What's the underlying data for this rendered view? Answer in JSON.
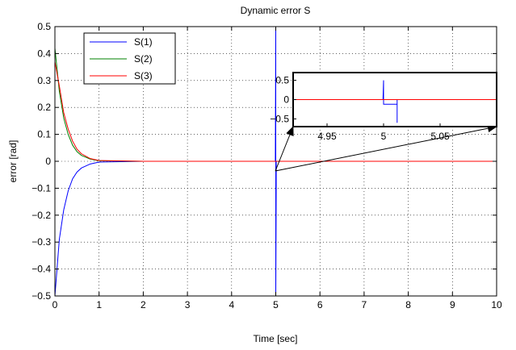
{
  "chart_data": {
    "type": "line",
    "title": "Dynamic error S",
    "xlabel": "Time [sec]",
    "ylabel": "error [rad]",
    "xlim": [
      0,
      10
    ],
    "ylim": [
      -0.5,
      0.5
    ],
    "xticks": [
      "0",
      "1",
      "2",
      "3",
      "4",
      "5",
      "6",
      "7",
      "8",
      "9",
      "10"
    ],
    "yticks": [
      "0.5",
      "0.4",
      "0.3",
      "0.2",
      "0.1",
      "0",
      "−0.1",
      "−0.2",
      "−0.3",
      "−0.4",
      "−0.5"
    ],
    "grid": true,
    "legend_position": "top-left",
    "series": [
      {
        "name": "S(1)",
        "color": "#0000ff",
        "x": [
          0,
          0.1,
          0.2,
          0.3,
          0.4,
          0.5,
          0.6,
          0.8,
          1.0,
          2,
          3,
          4,
          4.99,
          5.0,
          5.0,
          5.01,
          5.01,
          6,
          7,
          8,
          9,
          10
        ],
        "y": [
          -0.5,
          -0.29,
          -0.18,
          -0.11,
          -0.065,
          -0.04,
          -0.025,
          -0.01,
          -0.003,
          0.0,
          0.0,
          0.0,
          0.0,
          0.5,
          -0.5,
          -0.09,
          0.0,
          0.0,
          0.0,
          0.0,
          0.0,
          0.0
        ]
      },
      {
        "name": "S(2)",
        "color": "#008000",
        "x": [
          0,
          0.1,
          0.2,
          0.3,
          0.4,
          0.5,
          0.6,
          0.8,
          1.0,
          2,
          3,
          4,
          5,
          6,
          7,
          8,
          9,
          10
        ],
        "y": [
          0.42,
          0.26,
          0.16,
          0.1,
          0.06,
          0.036,
          0.022,
          0.008,
          0.002,
          0.0,
          0.0,
          0.0,
          0.0,
          0.0,
          0.0,
          0.0,
          0.0,
          0.0
        ]
      },
      {
        "name": "S(3)",
        "color": "#ff0000",
        "x": [
          0,
          0.1,
          0.2,
          0.3,
          0.4,
          0.5,
          0.6,
          0.8,
          1.0,
          2,
          3,
          4,
          5,
          6,
          7,
          8,
          9,
          10
        ],
        "y": [
          0.37,
          0.28,
          0.18,
          0.12,
          0.075,
          0.045,
          0.028,
          0.01,
          0.003,
          0.0,
          0.0,
          0.0,
          0.0,
          0.0,
          0.0,
          0.0,
          0.0,
          0.0
        ]
      }
    ],
    "inset": {
      "xlim": [
        4.92,
        5.1
      ],
      "ylim": [
        -0.7,
        0.7
      ],
      "xticks": [
        "4.95",
        "5",
        "5.05"
      ],
      "xtick_values": [
        4.95,
        5.0,
        5.05
      ],
      "yticks": [
        "0.5",
        "0",
        "−0.5"
      ],
      "ytick_values": [
        0.5,
        0,
        -0.5
      ],
      "series": [
        {
          "color": "#0000ff",
          "x": [
            4.92,
            4.9995,
            5.0,
            5.0,
            5.0,
            5.012,
            5.012,
            5.012,
            5.1
          ],
          "y": [
            0.0,
            0.0,
            0.5,
            -0.12,
            -0.12,
            -0.12,
            -0.6,
            0.0,
            0.0
          ]
        },
        {
          "color": "#008000",
          "x": [
            4.92,
            5.1
          ],
          "y": [
            0.0,
            0.0
          ]
        },
        {
          "color": "#ff0000",
          "x": [
            4.92,
            5.1
          ],
          "y": [
            0.0,
            0.0
          ]
        }
      ]
    }
  }
}
